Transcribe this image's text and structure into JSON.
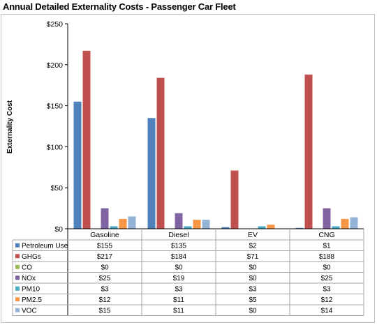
{
  "chart_data": {
    "type": "bar",
    "title": "Annual Detailed Externality Costs - Passenger Car Fleet",
    "ylabel": "Externality Cost",
    "xlabel": "",
    "categories": [
      "Gasoline",
      "Diesel",
      "EV",
      "CNG"
    ],
    "ylim": [
      0,
      250
    ],
    "yticks": [
      0,
      50,
      100,
      150,
      200,
      250
    ],
    "ytick_labels": [
      "$0",
      "$50",
      "$100",
      "$150",
      "$200",
      "$250"
    ],
    "legend_placement": "data-table",
    "grid": false,
    "series": [
      {
        "name": "Petroleum Use",
        "color": "#4f81bd",
        "values": [
          155,
          135,
          2,
          1
        ],
        "labels": [
          "$155",
          "$135",
          "$2",
          "$1"
        ]
      },
      {
        "name": "GHGs",
        "color": "#c0504d",
        "values": [
          217,
          184,
          71,
          188
        ],
        "labels": [
          "$217",
          "$184",
          "$71",
          "$188"
        ]
      },
      {
        "name": "CO",
        "color": "#9bbb59",
        "values": [
          0,
          0,
          0,
          0
        ],
        "labels": [
          "$0",
          "$0",
          "$0",
          "$0"
        ]
      },
      {
        "name": "NOx",
        "color": "#8064a2",
        "values": [
          25,
          19,
          0,
          25
        ],
        "labels": [
          "$25",
          "$19",
          "$0",
          "$25"
        ]
      },
      {
        "name": "PM10",
        "color": "#4bacc6",
        "values": [
          3,
          3,
          3,
          3
        ],
        "labels": [
          "$3",
          "$3",
          "$3",
          "$3"
        ]
      },
      {
        "name": "PM2.5",
        "color": "#f79646",
        "values": [
          12,
          11,
          5,
          12
        ],
        "labels": [
          "$12",
          "$11",
          "$5",
          "$12"
        ]
      },
      {
        "name": "VOC",
        "color": "#95b3d7",
        "values": [
          15,
          11,
          0,
          14
        ],
        "labels": [
          "$15",
          "$11",
          "$0",
          "$14"
        ]
      }
    ]
  }
}
